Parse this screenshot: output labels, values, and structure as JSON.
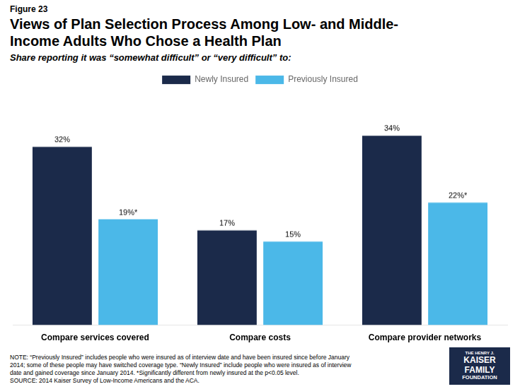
{
  "chart_data": {
    "type": "bar",
    "figure_label": "Figure 23",
    "title": [
      "Views of Plan Selection Process Among Low- and Middle-",
      "Income Adults Who Chose a Health Plan"
    ],
    "subtitle": "Share reporting it was “somewhat difficult” or “very difficult” to:",
    "categories": [
      "Compare services covered",
      "Compare costs",
      "Compare provider networks"
    ],
    "series": [
      {
        "name": "Newly Insured",
        "color": "#1B2A4A",
        "values": [
          32,
          17,
          34
        ],
        "value_labels": [
          "32%",
          "17%",
          "34%"
        ]
      },
      {
        "name": "Previously Insured",
        "color": "#4BB8E8",
        "values": [
          19,
          15,
          22
        ],
        "value_labels": [
          "19%*",
          "15%",
          "22%*"
        ]
      }
    ],
    "ylim": [
      0,
      42
    ],
    "grid": false,
    "legend": "top",
    "data_labels": true,
    "tick_labels": "x",
    "note": "NOTE: “Previously Insured” includes people who were insured as of interview date and have been insured since before January\n2014; some of these people may have switched coverage type. “Newly Insured” include people who were insured as of interview\ndate and gained coverage since January 2014. *Significantly different from newly insured at the p<0.05 level.\nSOURCE: 2014 Kaiser Survey of Low-Income Americans and the ACA.",
    "logo": [
      "THE HENRY J.",
      "KAISER",
      "FAMILY",
      "FOUNDATION"
    ]
  }
}
